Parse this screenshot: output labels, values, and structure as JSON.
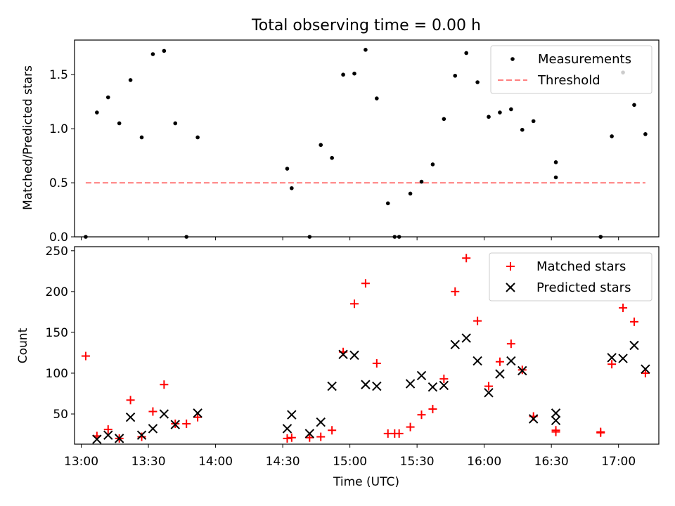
{
  "chart_data": [
    {
      "type": "scatter",
      "title": "Total observing time = 0.00 h",
      "xlabel": "",
      "ylabel": "Matched/Predicted stars",
      "ylim": [
        0,
        1.82
      ],
      "yticks": [
        "0.0",
        "0.5",
        "1.0",
        "1.5"
      ],
      "legend": "top-right",
      "series": [
        {
          "name": "Measurements",
          "color": "#000000",
          "marker": "dot",
          "x": [
            "13:02",
            "13:07",
            "13:12",
            "13:17",
            "13:22",
            "13:27",
            "13:32",
            "13:37",
            "13:42",
            "13:47",
            "13:52",
            "14:32",
            "14:34",
            "14:42",
            "14:47",
            "14:52",
            "14:57",
            "15:02",
            "15:07",
            "15:12",
            "15:17",
            "15:20",
            "15:22",
            "15:27",
            "15:32",
            "15:37",
            "15:42",
            "15:47",
            "15:52",
            "15:57",
            "16:02",
            "16:07",
            "16:12",
            "16:17",
            "16:22",
            "16:32",
            "16:32",
            "16:52",
            "16:52",
            "16:57",
            "17:02",
            "17:07",
            "17:12"
          ],
          "y": [
            0.0,
            1.15,
            1.29,
            1.05,
            1.45,
            0.92,
            1.69,
            1.72,
            1.05,
            0.0,
            0.92,
            0.63,
            0.45,
            0.0,
            0.85,
            0.73,
            1.5,
            1.51,
            1.73,
            1.28,
            0.31,
            0.0,
            0.0,
            0.4,
            0.51,
            0.67,
            1.09,
            1.49,
            1.7,
            1.43,
            1.11,
            1.15,
            1.18,
            0.99,
            1.07,
            0.69,
            0.55,
            0.0,
            0.0,
            0.93,
            1.52,
            1.22,
            0.95
          ]
        },
        {
          "name": "Threshold",
          "color": "#ff8080",
          "style": "dashed",
          "x": [
            "13:02",
            "17:12"
          ],
          "y": [
            0.5,
            0.5
          ]
        }
      ]
    },
    {
      "type": "scatter",
      "title": "",
      "xlabel": "Time (UTC)",
      "ylabel": "Count",
      "xlim": [
        "12:57",
        "17:18"
      ],
      "ylim": [
        13,
        255
      ],
      "xticks": [
        "13:00",
        "13:30",
        "14:00",
        "14:30",
        "15:00",
        "15:30",
        "16:00",
        "16:30",
        "17:00"
      ],
      "yticks": [
        "50",
        "100",
        "150",
        "200",
        "250"
      ],
      "legend": "top-right",
      "series": [
        {
          "name": "Matched stars",
          "color": "#ff0000",
          "marker": "plus",
          "x": [
            "13:02",
            "13:07",
            "13:12",
            "13:17",
            "13:22",
            "13:27",
            "13:32",
            "13:37",
            "13:42",
            "13:47",
            "13:52",
            "14:32",
            "14:34",
            "14:42",
            "14:47",
            "14:52",
            "14:57",
            "15:02",
            "15:07",
            "15:12",
            "15:17",
            "15:20",
            "15:22",
            "15:27",
            "15:32",
            "15:37",
            "15:42",
            "15:47",
            "15:52",
            "15:57",
            "16:02",
            "16:07",
            "16:12",
            "16:17",
            "16:22",
            "16:32",
            "16:32",
            "16:52",
            "16:52",
            "16:57",
            "17:02",
            "17:07",
            "17:12"
          ],
          "y": [
            121,
            23,
            31,
            20,
            67,
            22,
            53,
            86,
            38,
            38,
            46,
            20,
            21,
            21,
            22,
            30,
            126,
            185,
            210,
            112,
            26,
            26,
            26,
            34,
            49,
            56,
            93,
            200,
            241,
            164,
            84,
            114,
            136,
            104,
            47,
            30,
            28,
            28,
            27,
            111,
            180,
            163,
            100
          ]
        },
        {
          "name": "Predicted stars",
          "color": "#000000",
          "marker": "x",
          "x": [
            "13:07",
            "13:12",
            "13:17",
            "13:22",
            "13:27",
            "13:32",
            "13:37",
            "13:42",
            "13:52",
            "14:32",
            "14:34",
            "14:42",
            "14:47",
            "14:52",
            "14:57",
            "15:02",
            "15:07",
            "15:12",
            "15:27",
            "15:32",
            "15:37",
            "15:42",
            "15:47",
            "15:52",
            "15:57",
            "16:02",
            "16:07",
            "16:12",
            "16:17",
            "16:22",
            "16:32",
            "16:32",
            "16:57",
            "17:02",
            "17:07",
            "17:12"
          ],
          "y": [
            19,
            24,
            20,
            46,
            24,
            32,
            50,
            37,
            51,
            32,
            49,
            26,
            40,
            84,
            123,
            122,
            86,
            84,
            87,
            97,
            83,
            85,
            135,
            143,
            115,
            76,
            99,
            115,
            103,
            44,
            51,
            42,
            119,
            118,
            134,
            105
          ]
        }
      ]
    }
  ]
}
